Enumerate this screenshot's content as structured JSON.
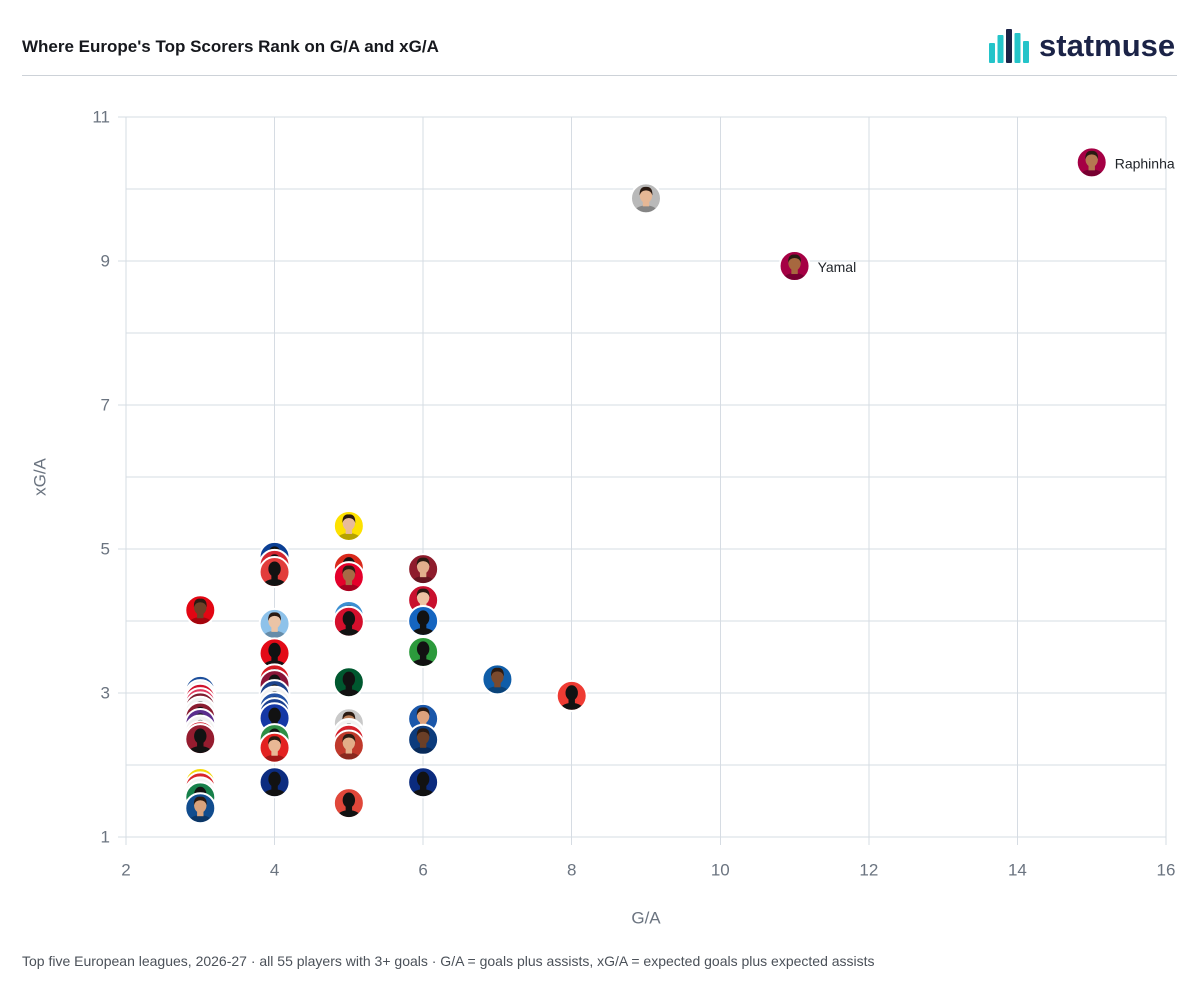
{
  "logo": {
    "text": "statmuse",
    "icon": "statmuse-bars-icon",
    "colors": {
      "teal": "#24c4c9",
      "navy": "#1b2347"
    }
  },
  "footer": {
    "note": "Top five European leagues, 2026-27 · all 55 players with 3+ goals · G/A = goals plus assists, xG/A = expected goals plus expected assists"
  },
  "chart_data": {
    "type": "scatter",
    "title": "Where Europe's Top Scorers Rank on G/A and xG/A",
    "xlabel": "G/A",
    "ylabel": "xG/A",
    "xlim": [
      2,
      16
    ],
    "ylim": [
      1,
      11
    ],
    "xticks": [
      2,
      4,
      6,
      8,
      10,
      12,
      14,
      16
    ],
    "yticks": [
      1,
      3,
      5,
      7,
      9,
      11
    ],
    "grid": true,
    "marker": "player-avatar",
    "points": [
      {
        "x": 3,
        "y": 4.15,
        "color": "#e30613",
        "avatar": "portrait",
        "skin": "#6e4128"
      },
      {
        "x": 3,
        "y": 3.03,
        "color": "#1c4f9c",
        "avatar": "silhouette"
      },
      {
        "x": 3,
        "y": 2.97,
        "color": "#f2f2f2",
        "avatar": "silhouette"
      },
      {
        "x": 3,
        "y": 2.92,
        "color": "#d0122c",
        "avatar": "silhouette"
      },
      {
        "x": 3,
        "y": 2.86,
        "color": "#e0395e",
        "avatar": "silhouette"
      },
      {
        "x": 3,
        "y": 2.8,
        "color": "#7d1b2e",
        "avatar": "silhouette"
      },
      {
        "x": 3,
        "y": 2.74,
        "color": "#f3f3f3",
        "avatar": "silhouette"
      },
      {
        "x": 3,
        "y": 2.66,
        "color": "#8a1c30",
        "avatar": "silhouette"
      },
      {
        "x": 3,
        "y": 2.57,
        "color": "#5a2d8c",
        "avatar": "silhouette"
      },
      {
        "x": 3,
        "y": 2.48,
        "color": "#f1f1f1",
        "avatar": "silhouette"
      },
      {
        "x": 3,
        "y": 2.4,
        "color": "#d42330",
        "avatar": "silhouette"
      },
      {
        "x": 3,
        "y": 2.36,
        "color": "#951c2f",
        "avatar": "silhouette"
      },
      {
        "x": 3,
        "y": 1.75,
        "color": "#f5d90a",
        "avatar": "silhouette"
      },
      {
        "x": 3,
        "y": 1.69,
        "color": "#d8262b",
        "avatar": "silhouette"
      },
      {
        "x": 3,
        "y": 1.62,
        "color": "#f4f4f4",
        "avatar": "silhouette"
      },
      {
        "x": 3,
        "y": 1.55,
        "color": "#16804a",
        "avatar": "silhouette"
      },
      {
        "x": 3,
        "y": 1.4,
        "color": "#114c8e",
        "avatar": "portrait",
        "skin": "#d9a27c"
      },
      {
        "x": 4,
        "y": 4.89,
        "color": "#0b3f94",
        "avatar": "silhouette"
      },
      {
        "x": 4,
        "y": 4.78,
        "color": "#d32630",
        "avatar": "silhouette"
      },
      {
        "x": 4,
        "y": 4.68,
        "color": "#e23d3b",
        "avatar": "silhouette"
      },
      {
        "x": 4,
        "y": 3.96,
        "color": "#8ec2ea",
        "avatar": "portrait",
        "skin": "#ebc4a6"
      },
      {
        "x": 4,
        "y": 3.55,
        "color": "#e30a17",
        "avatar": "silhouette"
      },
      {
        "x": 4,
        "y": 3.19,
        "color": "#d51a22",
        "avatar": "silhouette"
      },
      {
        "x": 4,
        "y": 3.11,
        "color": "#8b1538",
        "avatar": "silhouette"
      },
      {
        "x": 4,
        "y": 2.97,
        "color": "#1d428a",
        "avatar": "silhouette"
      },
      {
        "x": 4,
        "y": 2.88,
        "color": "#f2f2f2",
        "avatar": "silhouette"
      },
      {
        "x": 4,
        "y": 2.8,
        "color": "#2452a4",
        "avatar": "silhouette"
      },
      {
        "x": 4,
        "y": 2.72,
        "color": "#1a3f8f",
        "avatar": "silhouette"
      },
      {
        "x": 4,
        "y": 2.65,
        "color": "#1538a6",
        "avatar": "silhouette"
      },
      {
        "x": 4,
        "y": 2.36,
        "color": "#2f8f45",
        "avatar": "silhouette"
      },
      {
        "x": 4,
        "y": 2.24,
        "color": "#e32221",
        "avatar": "portrait",
        "skin": "#e8b895"
      },
      {
        "x": 4,
        "y": 1.76,
        "color": "#0c2c80",
        "avatar": "silhouette"
      },
      {
        "x": 5,
        "y": 5.32,
        "color": "#fde100",
        "avatar": "portrait",
        "skin": "#e9bb98"
      },
      {
        "x": 5,
        "y": 4.74,
        "color": "#da291c",
        "avatar": "silhouette"
      },
      {
        "x": 5,
        "y": 4.61,
        "color": "#e4002b",
        "avatar": "portrait",
        "skin": "#a86a45"
      },
      {
        "x": 5,
        "y": 4.07,
        "color": "#3b8fd2",
        "avatar": "silhouette"
      },
      {
        "x": 5,
        "y": 3.99,
        "color": "#d40f2c",
        "avatar": "silhouette"
      },
      {
        "x": 5,
        "y": 3.15,
        "color": "#00582f",
        "avatar": "silhouette"
      },
      {
        "x": 5,
        "y": 2.58,
        "color": "#c9c9c9",
        "avatar": "portrait",
        "skin": "#b97d57"
      },
      {
        "x": 5,
        "y": 2.43,
        "color": "#f3f3f3",
        "avatar": "silhouette"
      },
      {
        "x": 5,
        "y": 2.35,
        "color": "#d5202b",
        "avatar": "silhouette"
      },
      {
        "x": 5,
        "y": 2.27,
        "color": "#c0392b",
        "avatar": "portrait",
        "skin": "#e3ad88"
      },
      {
        "x": 5,
        "y": 1.47,
        "color": "#e0473a",
        "avatar": "silhouette"
      },
      {
        "x": 6,
        "y": 4.72,
        "color": "#8e1c2c",
        "avatar": "portrait",
        "skin": "#e2ae8c"
      },
      {
        "x": 6,
        "y": 4.29,
        "color": "#c8102e",
        "avatar": "portrait",
        "skin": "#edc3a3"
      },
      {
        "x": 6,
        "y": 4.0,
        "color": "#1565c0",
        "avatar": "silhouette"
      },
      {
        "x": 6,
        "y": 3.57,
        "color": "#2c9a3c",
        "avatar": "silhouette"
      },
      {
        "x": 6,
        "y": 2.64,
        "color": "#1a57aa",
        "avatar": "portrait",
        "skin": "#dda27d"
      },
      {
        "x": 6,
        "y": 2.35,
        "color": "#0c3b7c",
        "avatar": "portrait",
        "skin": "#6b3f27"
      },
      {
        "x": 6,
        "y": 1.76,
        "color": "#0b2b7e",
        "avatar": "silhouette"
      },
      {
        "x": 7,
        "y": 3.19,
        "color": "#0f5da8",
        "avatar": "portrait",
        "skin": "#7a4a2e"
      },
      {
        "x": 8,
        "y": 2.96,
        "color": "#ef3b33",
        "avatar": "silhouette"
      },
      {
        "x": 9,
        "y": 9.87,
        "color": "#b9b9b9",
        "avatar": "portrait",
        "skin": "#e6b795"
      },
      {
        "x": 11,
        "y": 8.93,
        "color": "#a50044",
        "avatar": "portrait",
        "skin": "#a7683f",
        "label": "Yamal"
      },
      {
        "x": 15,
        "y": 10.37,
        "color": "#a50044",
        "avatar": "portrait",
        "skin": "#b57851",
        "label": "Raphinha"
      }
    ]
  }
}
